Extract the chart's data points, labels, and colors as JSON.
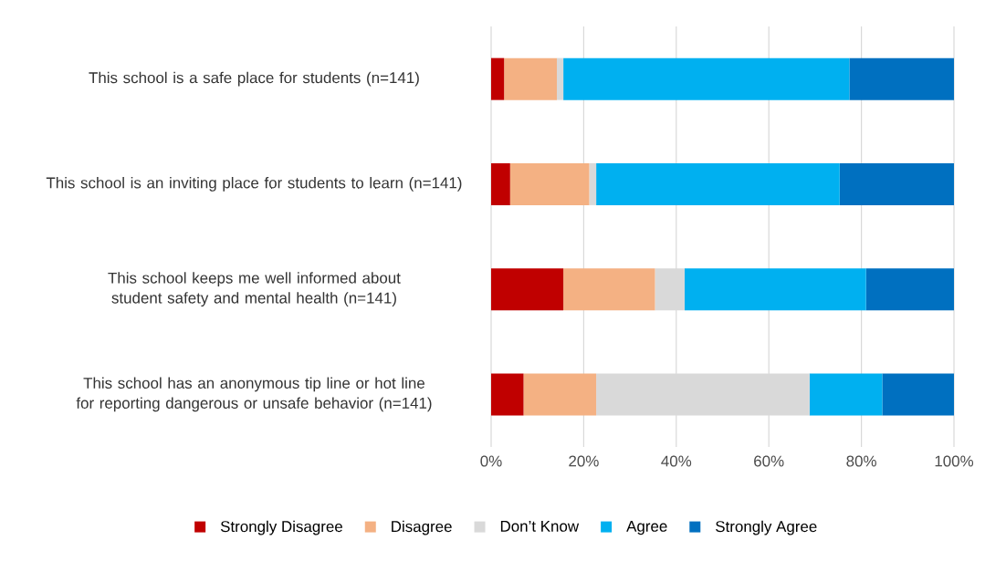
{
  "chart_data": {
    "type": "bar",
    "orientation": "horizontal",
    "stacked": true,
    "categories": [
      "This school is a safe place for students (n=141)",
      "This school is an inviting place for students to learn (n=141)",
      "This school keeps me well informed about student safety and mental health (n=141)",
      "This school has an anonymous tip line or hot line for reporting dangerous or unsafe behavior (n=141)"
    ],
    "series": [
      {
        "name": "Strongly Disagree",
        "color": "#c00000",
        "values": [
          2.8,
          4.1,
          15.6,
          7.0
        ]
      },
      {
        "name": "Disagree",
        "color": "#f4b183",
        "values": [
          11.4,
          17.1,
          19.8,
          15.7
        ]
      },
      {
        "name": "Don’t Know",
        "color": "#d9d9d9",
        "values": [
          1.4,
          1.5,
          6.4,
          46.1
        ]
      },
      {
        "name": "Agree",
        "color": "#00b0f0",
        "values": [
          61.8,
          52.6,
          39.2,
          15.7
        ]
      },
      {
        "name": "Strongly Agree",
        "color": "#0070c0",
        "values": [
          22.6,
          24.7,
          19.0,
          15.5
        ]
      }
    ],
    "xlim": [
      0,
      100
    ],
    "xticks": [
      {
        "value": 0,
        "label": "0%"
      },
      {
        "value": 20,
        "label": "20%"
      },
      {
        "value": 40,
        "label": "40%"
      },
      {
        "value": 60,
        "label": "60%"
      },
      {
        "value": 80,
        "label": "80%"
      },
      {
        "value": 100,
        "label": "100%"
      }
    ],
    "grid": "x",
    "legend": "bottom"
  }
}
